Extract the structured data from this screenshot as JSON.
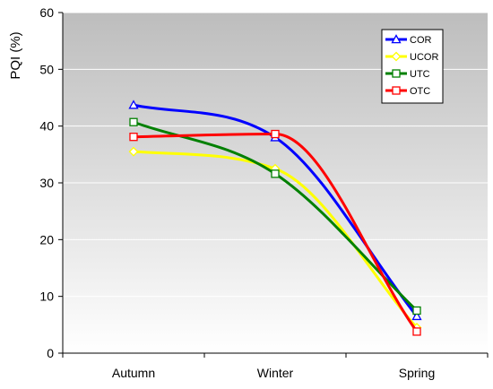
{
  "chart_data": {
    "type": "line",
    "categories": [
      "Autumn",
      "Winter",
      "Spring"
    ],
    "ylabel": "PQI (%)",
    "xlabel": "",
    "ylim": [
      0,
      60
    ],
    "yticks": [
      0,
      10,
      20,
      30,
      40,
      50,
      60
    ],
    "grid": true,
    "smoothed": true,
    "legend_position": "top-right",
    "background": "gradient-grey",
    "series": [
      {
        "name": "COR",
        "color": "#0000ff",
        "marker": "triangle",
        "values": [
          43.7,
          38.0,
          6.5
        ]
      },
      {
        "name": "UCOR",
        "color": "#ffff00",
        "marker": "diamond",
        "values": [
          35.5,
          32.5,
          4.5
        ]
      },
      {
        "name": "UTC",
        "color": "#008000",
        "marker": "square",
        "values": [
          40.7,
          31.6,
          7.5
        ]
      },
      {
        "name": "OTC",
        "color": "#ff0000",
        "marker": "square",
        "values": [
          38.1,
          38.6,
          3.8
        ]
      }
    ]
  }
}
